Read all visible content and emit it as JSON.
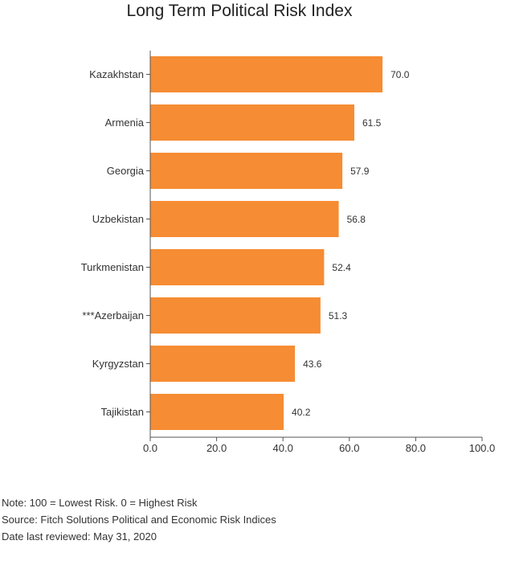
{
  "chart_data": {
    "type": "bar",
    "orientation": "horizontal",
    "title": "Long Term Political Risk Index",
    "categories": [
      "Kazakhstan",
      "Armenia",
      "Georgia",
      "Uzbekistan",
      "Turkmenistan",
      "***Azerbaijan",
      "Kyrgyzstan",
      "Tajikistan"
    ],
    "values": [
      70.0,
      61.5,
      57.9,
      56.8,
      52.4,
      51.3,
      43.6,
      40.2
    ],
    "value_labels": [
      "70.0",
      "61.5",
      "57.9",
      "56.8",
      "52.4",
      "51.3",
      "43.6",
      "40.2"
    ],
    "xlim": [
      0,
      100
    ],
    "x_ticks": [
      "0.0",
      "20.0",
      "40.0",
      "60.0",
      "80.0",
      "100.0"
    ],
    "grid": false,
    "bar_color": "#f68c33"
  },
  "notes": {
    "note": "Note: 100 = Lowest Risk. 0 = Highest Risk",
    "source": "Source: Fitch Solutions Political and Economic Risk Indices",
    "reviewed": "Date last reviewed: May 31, 2020"
  }
}
